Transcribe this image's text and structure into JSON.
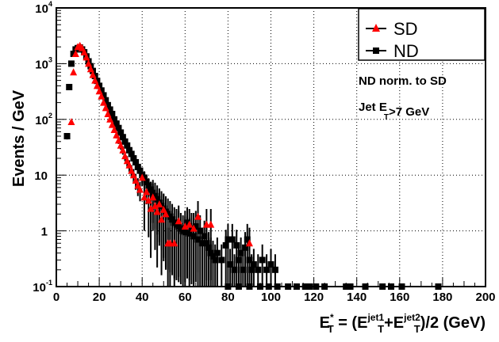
{
  "chart_data": {
    "type": "scatter",
    "xlabel": {
      "parts": [
        {
          "text": "E",
          "style": "normal"
        },
        {
          "text": "*",
          "style": "sup"
        },
        {
          "text": "T",
          "style": "sub"
        },
        {
          "text": " = (E",
          "style": "normal"
        },
        {
          "text": "jet1",
          "style": "sup"
        },
        {
          "text": "T",
          "style": "sub"
        },
        {
          "text": "+E",
          "style": "normal"
        },
        {
          "text": "jet2",
          "style": "sup"
        },
        {
          "text": "T",
          "style": "sub"
        },
        {
          "text": ")/2 (GeV)",
          "style": "normal"
        }
      ]
    },
    "ylabel": "Events / GeV",
    "xlim": [
      0,
      200
    ],
    "ylim": [
      0.1,
      10000
    ],
    "yscale": "log",
    "grid": true,
    "x_ticks": [
      "0",
      "20",
      "40",
      "60",
      "80",
      "100",
      "120",
      "140",
      "160",
      "180",
      "200"
    ],
    "y_ticks": [
      {
        "base": "10",
        "exp": "-1"
      },
      {
        "base": "1",
        "exp": ""
      },
      {
        "base": "10",
        "exp": ""
      },
      {
        "base": "10",
        "exp": "2"
      },
      {
        "base": "10",
        "exp": "3"
      },
      {
        "base": "10",
        "exp": "4"
      }
    ],
    "legend": {
      "placement": "top-right",
      "entries": [
        {
          "name": "SD",
          "marker": "triangle",
          "color": "#ff0000"
        },
        {
          "name": "ND",
          "marker": "square",
          "color": "#000000"
        }
      ]
    },
    "annotations": [
      {
        "parts": [
          {
            "text": "ND norm. to SD",
            "style": "normal"
          }
        ]
      },
      {
        "parts": [
          {
            "text": "Jet E",
            "style": "normal"
          },
          {
            "text": "T",
            "style": "sub"
          },
          {
            "text": ">7 GeV",
            "style": "normal"
          }
        ]
      }
    ],
    "series": [
      {
        "name": "SD",
        "marker": "triangle",
        "color": "#ff0000",
        "points": [
          {
            "x": 7,
            "y": 90
          },
          {
            "x": 8,
            "y": 700
          },
          {
            "x": 9,
            "y": 1500
          },
          {
            "x": 10,
            "y": 2000
          },
          {
            "x": 11,
            "y": 2100
          },
          {
            "x": 12,
            "y": 1900
          },
          {
            "x": 13,
            "y": 1600
          },
          {
            "x": 14,
            "y": 1300
          },
          {
            "x": 15,
            "y": 1000
          },
          {
            "x": 16,
            "y": 800
          },
          {
            "x": 17,
            "y": 630
          },
          {
            "x": 18,
            "y": 500
          },
          {
            "x": 19,
            "y": 400
          },
          {
            "x": 20,
            "y": 320
          },
          {
            "x": 21,
            "y": 260
          },
          {
            "x": 22,
            "y": 200
          },
          {
            "x": 23,
            "y": 160
          },
          {
            "x": 24,
            "y": 125
          },
          {
            "x": 25,
            "y": 100
          },
          {
            "x": 26,
            "y": 80
          },
          {
            "x": 27,
            "y": 65
          },
          {
            "x": 28,
            "y": 52
          },
          {
            "x": 29,
            "y": 42
          },
          {
            "x": 30,
            "y": 34
          },
          {
            "x": 31,
            "y": 28
          },
          {
            "x": 32,
            "y": 22
          },
          {
            "x": 33,
            "y": 18
          },
          {
            "x": 34,
            "y": 15
          },
          {
            "x": 35,
            "y": 12
          },
          {
            "x": 36,
            "y": 10
          },
          {
            "x": 37,
            "y": 8
          },
          {
            "x": 38,
            "y": 6.5
          },
          {
            "x": 39,
            "y": 5.5
          },
          {
            "x": 40,
            "y": 9
          },
          {
            "x": 41,
            "y": 4
          },
          {
            "x": 42,
            "y": 5
          },
          {
            "x": 43,
            "y": 3.5
          },
          {
            "x": 44,
            "y": 2.5
          },
          {
            "x": 45,
            "y": 4
          },
          {
            "x": 46,
            "y": 2.8
          },
          {
            "x": 47,
            "y": 2.2
          },
          {
            "x": 48,
            "y": 3
          },
          {
            "x": 49,
            "y": 1.6
          },
          {
            "x": 50,
            "y": 2.4
          },
          {
            "x": 51,
            "y": 2
          },
          {
            "x": 52,
            "y": 0.6
          },
          {
            "x": 53,
            "y": 0.6
          },
          {
            "x": 55,
            "y": 0.6
          },
          {
            "x": 57,
            "y": 1.5
          },
          {
            "x": 60,
            "y": 1.2
          },
          {
            "x": 62,
            "y": 1.3
          },
          {
            "x": 64,
            "y": 1.1
          },
          {
            "x": 66,
            "y": 1.8
          },
          {
            "x": 70,
            "y": 1.3
          },
          {
            "x": 72,
            "y": 1.3
          },
          {
            "x": 90,
            "y": 0.6
          }
        ]
      },
      {
        "name": "ND",
        "marker": "square",
        "color": "#000000",
        "points": [
          {
            "x": 5,
            "y": 50
          },
          {
            "x": 6,
            "y": 380
          },
          {
            "x": 7,
            "y": 1000
          },
          {
            "x": 8,
            "y": 1500
          },
          {
            "x": 9,
            "y": 1800
          },
          {
            "x": 10,
            "y": 1900
          },
          {
            "x": 11,
            "y": 1950
          },
          {
            "x": 12,
            "y": 1800
          },
          {
            "x": 13,
            "y": 1600
          },
          {
            "x": 14,
            "y": 1350
          },
          {
            "x": 15,
            "y": 1100
          },
          {
            "x": 16,
            "y": 900
          },
          {
            "x": 17,
            "y": 740
          },
          {
            "x": 18,
            "y": 600
          },
          {
            "x": 19,
            "y": 490
          },
          {
            "x": 20,
            "y": 400
          },
          {
            "x": 21,
            "y": 330
          },
          {
            "x": 22,
            "y": 270
          },
          {
            "x": 23,
            "y": 220
          },
          {
            "x": 24,
            "y": 180
          },
          {
            "x": 25,
            "y": 150
          },
          {
            "x": 26,
            "y": 125
          },
          {
            "x": 27,
            "y": 100
          },
          {
            "x": 28,
            "y": 84
          },
          {
            "x": 29,
            "y": 70
          },
          {
            "x": 30,
            "y": 58
          },
          {
            "x": 31,
            "y": 48
          },
          {
            "x": 32,
            "y": 40
          },
          {
            "x": 33,
            "y": 34
          },
          {
            "x": 34,
            "y": 28
          },
          {
            "x": 35,
            "y": 24
          },
          {
            "x": 36,
            "y": 20
          },
          {
            "x": 37,
            "y": 17
          },
          {
            "x": 38,
            "y": 14
          },
          {
            "x": 39,
            "y": 12
          },
          {
            "x": 40,
            "y": 10
          },
          {
            "x": 41,
            "y": 9
          },
          {
            "x": 42,
            "y": 7.5
          },
          {
            "x": 43,
            "y": 6.5
          },
          {
            "x": 44,
            "y": 5.5
          },
          {
            "x": 45,
            "y": 4.8
          },
          {
            "x": 46,
            "y": 4.2
          },
          {
            "x": 47,
            "y": 3.7
          },
          {
            "x": 48,
            "y": 3.2
          },
          {
            "x": 49,
            "y": 2.8
          },
          {
            "x": 50,
            "y": 2.5
          },
          {
            "x": 51,
            "y": 2.2
          },
          {
            "x": 52,
            "y": 2
          },
          {
            "x": 53,
            "y": 1.8
          },
          {
            "x": 54,
            "y": 1.6
          },
          {
            "x": 55,
            "y": 1.4
          },
          {
            "x": 56,
            "y": 1.3
          },
          {
            "x": 57,
            "y": 1.2
          },
          {
            "x": 58,
            "y": 1.1
          },
          {
            "x": 59,
            "y": 1
          },
          {
            "x": 60,
            "y": 0.95
          },
          {
            "x": 61,
            "y": 1.4
          },
          {
            "x": 62,
            "y": 0.9
          },
          {
            "x": 63,
            "y": 1.1
          },
          {
            "x": 64,
            "y": 0.8
          },
          {
            "x": 65,
            "y": 1.2
          },
          {
            "x": 66,
            "y": 0.7
          },
          {
            "x": 67,
            "y": 1
          },
          {
            "x": 68,
            "y": 0.6
          },
          {
            "x": 69,
            "y": 0.8
          },
          {
            "x": 70,
            "y": 0.6
          },
          {
            "x": 71,
            "y": 0.5
          },
          {
            "x": 72,
            "y": 0.4
          },
          {
            "x": 73,
            "y": 0.35
          },
          {
            "x": 74,
            "y": 0.3
          },
          {
            "x": 75,
            "y": 0.4
          },
          {
            "x": 77,
            "y": 0.3
          },
          {
            "x": 79,
            "y": 0.55
          },
          {
            "x": 80,
            "y": 0.7
          },
          {
            "x": 81,
            "y": 0.25
          },
          {
            "x": 82,
            "y": 0.7
          },
          {
            "x": 83,
            "y": 0.2
          },
          {
            "x": 84,
            "y": 0.55
          },
          {
            "x": 85,
            "y": 0.3
          },
          {
            "x": 86,
            "y": 0.4
          },
          {
            "x": 87,
            "y": 0.2
          },
          {
            "x": 88,
            "y": 0.5
          },
          {
            "x": 89,
            "y": 0.7
          },
          {
            "x": 90,
            "y": 0.3
          },
          {
            "x": 91,
            "y": 0.2
          },
          {
            "x": 92,
            "y": 0.25
          },
          {
            "x": 94,
            "y": 0.2
          },
          {
            "x": 96,
            "y": 0.3
          },
          {
            "x": 98,
            "y": 0.2
          },
          {
            "x": 100,
            "y": 0.25
          },
          {
            "x": 102,
            "y": 0.2
          },
          {
            "x": 80,
            "y": 0.1
          },
          {
            "x": 85,
            "y": 0.1
          },
          {
            "x": 90,
            "y": 0.1
          },
          {
            "x": 95,
            "y": 0.1
          },
          {
            "x": 99,
            "y": 0.1
          },
          {
            "x": 103,
            "y": 0.1
          },
          {
            "x": 108,
            "y": 0.1
          },
          {
            "x": 112,
            "y": 0.1
          },
          {
            "x": 116,
            "y": 0.1
          },
          {
            "x": 118,
            "y": 0.1
          },
          {
            "x": 121,
            "y": 0.1
          },
          {
            "x": 125,
            "y": 0.1
          },
          {
            "x": 135,
            "y": 0.1
          },
          {
            "x": 137,
            "y": 0.1
          },
          {
            "x": 144,
            "y": 0.1
          },
          {
            "x": 152,
            "y": 0.1
          },
          {
            "x": 156,
            "y": 0.1
          },
          {
            "x": 161,
            "y": 0.1
          },
          {
            "x": 178,
            "y": 0.1
          }
        ]
      }
    ]
  }
}
